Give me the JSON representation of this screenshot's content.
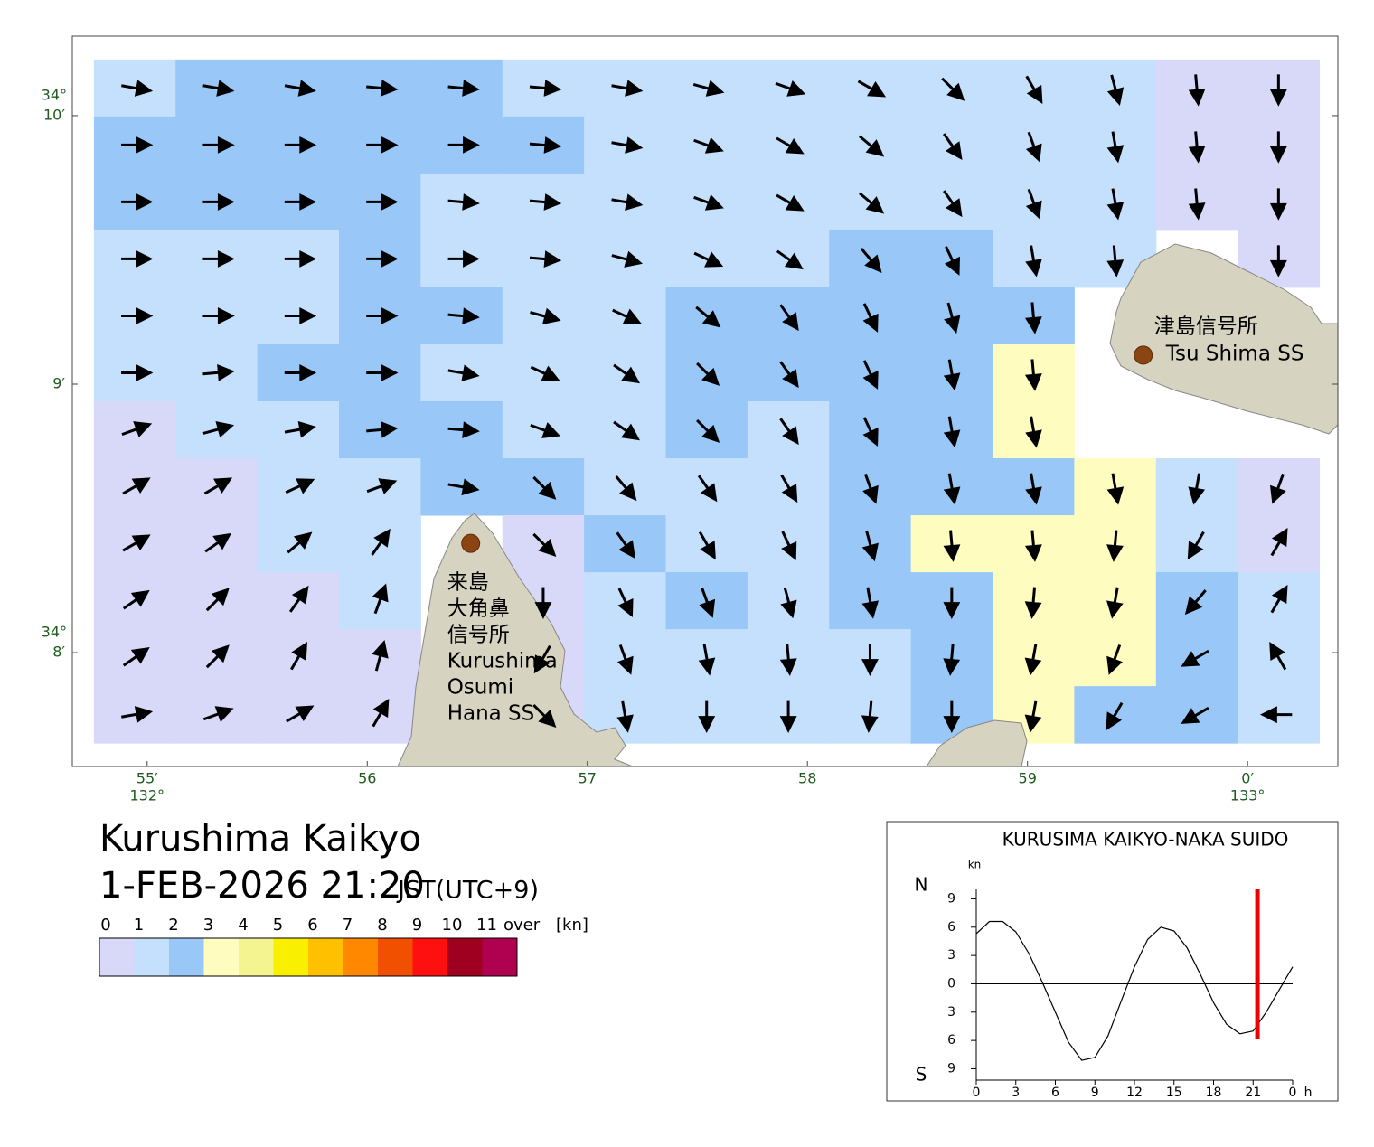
{
  "map": {
    "xlim": [
      54.66,
      60.41
    ],
    "ylim": [
      7.576,
      10.296
    ],
    "xticks": [
      {
        "value": 55,
        "label": "55′"
      },
      56,
      57,
      58,
      59,
      {
        "value": 60,
        "label": "0′"
      }
    ],
    "x_degree_labels": [
      {
        "value": 55,
        "label": "132°"
      },
      {
        "value": 60,
        "label": "133°"
      }
    ],
    "yticks": [
      {
        "value": 10,
        "label": "10′"
      },
      {
        "value": 9,
        "label": "9′"
      },
      {
        "value": 8,
        "label": "8′"
      }
    ],
    "y_degree_labels": [
      {
        "value": 10,
        "label": "34°"
      },
      {
        "value": 8,
        "label": "34°"
      }
    ],
    "stations": [
      {
        "lon": 59.526,
        "lat": 9.108,
        "label_lines": [
          "津島信号所",
          "Tsu Shima SS"
        ]
      },
      {
        "lon": 56.47,
        "lat": 8.407,
        "label_lines": [
          "来島",
          "大角鼻",
          "信号所",
          "Kurushima",
          "Osumi",
          "Hana SS"
        ]
      }
    ],
    "grid_extent": {
      "lon": [
        54.758,
        60.326
      ],
      "lat": [
        7.663,
        10.209
      ]
    },
    "speed_class": [
      [
        1,
        2,
        2,
        2,
        2,
        1,
        1,
        1,
        1,
        1,
        1,
        1,
        1,
        0,
        0
      ],
      [
        2,
        2,
        2,
        2,
        2,
        2,
        1,
        1,
        1,
        1,
        1,
        1,
        1,
        0,
        0
      ],
      [
        2,
        2,
        2,
        2,
        1,
        1,
        1,
        1,
        1,
        1,
        1,
        1,
        1,
        0,
        0
      ],
      [
        1,
        1,
        1,
        2,
        1,
        1,
        1,
        1,
        1,
        2,
        2,
        1,
        1,
        null,
        0
      ],
      [
        1,
        1,
        1,
        2,
        2,
        1,
        1,
        2,
        2,
        2,
        2,
        2,
        null,
        null,
        null
      ],
      [
        1,
        1,
        2,
        2,
        1,
        1,
        1,
        2,
        2,
        2,
        2,
        3,
        null,
        null,
        null
      ],
      [
        0,
        1,
        1,
        2,
        2,
        1,
        1,
        2,
        1,
        2,
        2,
        3,
        null,
        null,
        null
      ],
      [
        0,
        0,
        1,
        1,
        2,
        2,
        1,
        1,
        1,
        2,
        2,
        2,
        3,
        1,
        0
      ],
      [
        0,
        0,
        1,
        1,
        null,
        0,
        2,
        1,
        1,
        2,
        3,
        3,
        3,
        1,
        0
      ],
      [
        0,
        0,
        0,
        1,
        null,
        0,
        1,
        2,
        1,
        2,
        2,
        3,
        3,
        2,
        1
      ],
      [
        0,
        0,
        0,
        0,
        null,
        0,
        1,
        1,
        1,
        1,
        2,
        3,
        3,
        2,
        1
      ],
      [
        0,
        0,
        0,
        0,
        null,
        0,
        1,
        1,
        1,
        1,
        2,
        3,
        2,
        2,
        1
      ]
    ],
    "direction": [
      [
        10,
        10,
        10,
        5,
        5,
        5,
        10,
        15,
        20,
        30,
        45,
        60,
        75,
        85,
        90
      ],
      [
        0,
        0,
        0,
        0,
        0,
        5,
        10,
        20,
        30,
        40,
        55,
        70,
        80,
        85,
        90
      ],
      [
        0,
        0,
        0,
        0,
        5,
        5,
        10,
        20,
        30,
        40,
        55,
        70,
        80,
        85,
        90
      ],
      [
        0,
        0,
        0,
        0,
        0,
        5,
        15,
        25,
        35,
        50,
        65,
        80,
        85,
        null,
        90
      ],
      [
        0,
        0,
        0,
        0,
        5,
        15,
        25,
        40,
        55,
        65,
        75,
        85,
        null,
        null,
        null
      ],
      [
        0,
        -5,
        0,
        0,
        10,
        25,
        35,
        45,
        55,
        65,
        80,
        85,
        null,
        null,
        null
      ],
      [
        -20,
        -15,
        -10,
        -5,
        5,
        20,
        35,
        45,
        55,
        65,
        80,
        80,
        null,
        null,
        null
      ],
      [
        -30,
        -30,
        -25,
        -20,
        10,
        45,
        50,
        55,
        60,
        70,
        80,
        80,
        80,
        100,
        110
      ],
      [
        -30,
        -35,
        -40,
        -55,
        null,
        45,
        55,
        60,
        65,
        75,
        85,
        85,
        95,
        120,
        -60
      ],
      [
        -35,
        -45,
        -55,
        -70,
        null,
        90,
        65,
        70,
        75,
        80,
        90,
        95,
        100,
        130,
        -60
      ],
      [
        -35,
        -45,
        -60,
        -75,
        null,
        120,
        70,
        80,
        85,
        90,
        95,
        100,
        110,
        150,
        -120
      ],
      [
        -10,
        -20,
        -30,
        -60,
        null,
        45,
        80,
        90,
        90,
        95,
        90,
        100,
        120,
        150,
        180
      ]
    ]
  },
  "title": "Kurushima Kaikyo",
  "datetime": "1-FEB-2026 21:20",
  "timezone": "JST(UTC+9)",
  "legend": {
    "ticks": [
      0,
      1,
      2,
      3,
      4,
      5,
      6,
      7,
      8,
      9,
      10,
      11
    ],
    "over_label": "over",
    "unit": "[kn]",
    "colors": [
      "#d8d8f8",
      "#c4e0fc",
      "#99c8f8",
      "#fffcc0",
      "#f4f490",
      "#f8f000",
      "#ffc000",
      "#ff8800",
      "#f05000",
      "#ff1010",
      "#a00020",
      "#b00050"
    ]
  },
  "chart_data": {
    "type": "line",
    "title": "KURUSIMA KAIKYO-NAKA SUIDO",
    "y_unit": "kn",
    "x_unit": "h",
    "north_label": "N",
    "south_label": "S",
    "x": [
      0,
      1,
      2,
      3,
      4,
      5,
      6,
      7,
      8,
      9,
      10,
      11,
      12,
      13,
      14,
      15,
      16,
      17,
      18,
      19,
      20,
      21,
      22,
      23,
      24
    ],
    "values": [
      5.3,
      6.6,
      6.6,
      5.5,
      3.2,
      0.2,
      -3,
      -6.2,
      -8.1,
      -7.8,
      -5.5,
      -1.8,
      1.8,
      4.7,
      6,
      5.6,
      3.8,
      1,
      -2,
      -4.3,
      -5.3,
      -5,
      -3,
      -0.6,
      1.8
    ],
    "color": "#000000",
    "xlim": [
      0,
      24
    ],
    "ylim": [
      -10.2,
      10
    ],
    "xticks": [
      0,
      3,
      6,
      9,
      12,
      15,
      18,
      21,
      {
        "value": 24,
        "label": "0"
      }
    ],
    "yticks": [
      9,
      6,
      3,
      0,
      {
        "value": -3,
        "label": "3"
      },
      {
        "value": -6,
        "label": "6"
      },
      {
        "value": -9,
        "label": "9"
      }
    ],
    "now": 21.33,
    "now_color": "#ee0000"
  }
}
